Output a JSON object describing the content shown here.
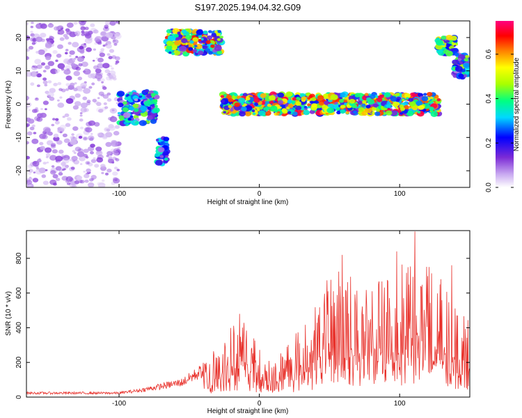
{
  "title": "S197.2025.194.04.32.G09",
  "chart_data": [
    {
      "type": "heatmap",
      "xlabel": "Height of straight line (km)",
      "ylabel": "Frequency (Hz)",
      "xlim": [
        -166,
        150
      ],
      "ylim": [
        -25,
        25
      ],
      "x_ticks": [
        -100,
        0,
        100
      ],
      "y_ticks": [
        -20,
        -10,
        0,
        10,
        20
      ],
      "colorbar": {
        "label": "Normalized spectral amplitude",
        "range": [
          0,
          0.75
        ],
        "ticks": [
          "0.0",
          "0.2",
          "0.4",
          "0.6"
        ],
        "tick_values": [
          0.0,
          0.2,
          0.4,
          0.6
        ],
        "colormap": [
          "#ffffff",
          "#c8a8f0",
          "#7c2bd6",
          "#0000ff",
          "#00d8ff",
          "#00ff80",
          "#a8ff00",
          "#ffff00",
          "#ff8000",
          "#ff0000",
          "#ff0080"
        ]
      },
      "regions": [
        {
          "x": [
            -166,
            -100
          ],
          "y": [
            -25,
            25
          ],
          "amplitude": 0.12,
          "pattern": "scattered noise"
        },
        {
          "x": [
            -100,
            -73
          ],
          "y": [
            -6,
            4
          ],
          "amplitude": 0.28
        },
        {
          "x": [
            -73,
            -66
          ],
          "y": [
            -18,
            -10
          ],
          "amplitude": 0.24
        },
        {
          "x": [
            -66,
            -27
          ],
          "y": [
            15,
            22
          ],
          "amplitude": 0.42
        },
        {
          "x": [
            -27,
            128
          ],
          "y": [
            -3,
            3
          ],
          "amplitude": 0.45
        },
        {
          "x": [
            127,
            140
          ],
          "y": [
            15,
            20
          ],
          "amplitude": 0.35
        },
        {
          "x": [
            139,
            150
          ],
          "y": [
            8,
            15
          ],
          "amplitude": 0.3
        }
      ]
    },
    {
      "type": "line",
      "xlabel": "Height of straight line (km)",
      "ylabel": "SNR (10 * v/v)",
      "xlim": [
        -166,
        150
      ],
      "ylim": [
        0,
        960
      ],
      "x_ticks": [
        -100,
        0,
        100
      ],
      "y_ticks": [
        0,
        200,
        400,
        600,
        800
      ],
      "color": "#e8302a",
      "envelope": [
        {
          "x": -166,
          "y": 30
        },
        {
          "x": -100,
          "y": 30
        },
        {
          "x": -85,
          "y": 50
        },
        {
          "x": -70,
          "y": 80
        },
        {
          "x": -55,
          "y": 110
        },
        {
          "x": -40,
          "y": 200
        },
        {
          "x": -30,
          "y": 300
        },
        {
          "x": -20,
          "y": 430
        },
        {
          "x": -10,
          "y": 470
        },
        {
          "x": 0,
          "y": 300
        },
        {
          "x": 10,
          "y": 200
        },
        {
          "x": 20,
          "y": 330
        },
        {
          "x": 30,
          "y": 400
        },
        {
          "x": 40,
          "y": 560
        },
        {
          "x": 50,
          "y": 700
        },
        {
          "x": 60,
          "y": 750
        },
        {
          "x": 70,
          "y": 720
        },
        {
          "x": 80,
          "y": 620
        },
        {
          "x": 90,
          "y": 780
        },
        {
          "x": 100,
          "y": 820
        },
        {
          "x": 110,
          "y": 900
        },
        {
          "x": 120,
          "y": 760
        },
        {
          "x": 130,
          "y": 680
        },
        {
          "x": 140,
          "y": 550
        },
        {
          "x": 150,
          "y": 450
        }
      ],
      "peaks": [
        {
          "x": 59,
          "y": 820
        },
        {
          "x": 98,
          "y": 840
        },
        {
          "x": 111,
          "y": 955
        },
        {
          "x": 121,
          "y": 750
        },
        {
          "x": 115,
          "y": 640
        },
        {
          "x": 85,
          "y": 650
        },
        {
          "x": 49,
          "y": 610
        },
        {
          "x": 137,
          "y": 760
        },
        {
          "x": -14,
          "y": 480
        }
      ]
    }
  ]
}
